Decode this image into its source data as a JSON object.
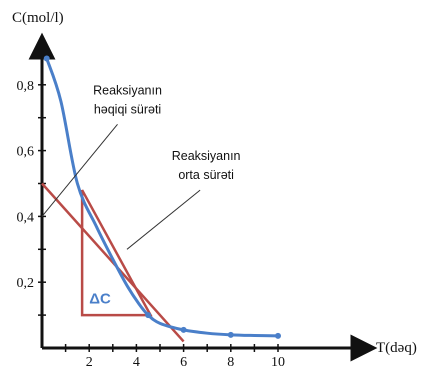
{
  "chart_data": {
    "type": "line",
    "xlabel": "T(dəq)",
    "ylabel": "C(mol/l)",
    "xlim": [
      0,
      11.5
    ],
    "ylim": [
      0,
      0.9
    ],
    "x_ticks": [
      2,
      4,
      6,
      8,
      10
    ],
    "x_tick_labels": [
      "2",
      "4",
      "6",
      "8",
      "10"
    ],
    "x_minor_ticks": [
      1,
      3,
      5,
      7,
      9
    ],
    "y_ticks": [
      0.2,
      0.4,
      0.6,
      0.8
    ],
    "y_tick_labels": [
      "0,2",
      "0,4",
      "0,6",
      "0,8"
    ],
    "y_minor_ticks": [
      0.1,
      0.3,
      0.5,
      0.7
    ],
    "grid": false,
    "curve": {
      "color": "#4a7fc9",
      "x": [
        0.2,
        0.8,
        1.5,
        2.3,
        3.0,
        3.6,
        4.1,
        4.5,
        5.0,
        6.0,
        7.0,
        8.0,
        9.0,
        10.0
      ],
      "y": [
        0.88,
        0.75,
        0.5,
        0.37,
        0.27,
        0.19,
        0.135,
        0.1,
        0.075,
        0.055,
        0.045,
        0.04,
        0.038,
        0.037
      ],
      "markers": [
        {
          "x": 0.2,
          "y": 0.88
        },
        {
          "x": 4.5,
          "y": 0.1
        },
        {
          "x": 6.0,
          "y": 0.055
        },
        {
          "x": 8.0,
          "y": 0.04
        },
        {
          "x": 10.0,
          "y": 0.037
        }
      ]
    },
    "tangent_line": {
      "color": "#b94b47",
      "x": [
        0,
        6.0
      ],
      "y": [
        0.5,
        0.02
      ]
    },
    "secant_triangle": {
      "color": "#b94b47",
      "points": [
        {
          "x": 1.7,
          "y": 0.48
        },
        {
          "x": 1.7,
          "y": 0.1
        },
        {
          "x": 4.6,
          "y": 0.1
        }
      ]
    },
    "annotations": [
      {
        "lines": [
          "Reaksiyanın",
          "həqiqi sürəti"
        ],
        "pointer_from": {
          "x": 3.2,
          "y": 0.68
        },
        "pointer_to": {
          "x": 0.0,
          "y": 0.4
        }
      },
      {
        "lines": [
          "Reaksiyanın",
          "orta sürəti"
        ],
        "pointer_from": {
          "x": 6.7,
          "y": 0.48
        },
        "pointer_to": {
          "x": 3.6,
          "y": 0.3
        }
      }
    ],
    "delta_label": {
      "text": "ΔC",
      "color": "#4a7fc9",
      "x": 2.0,
      "y": 0.15
    }
  }
}
